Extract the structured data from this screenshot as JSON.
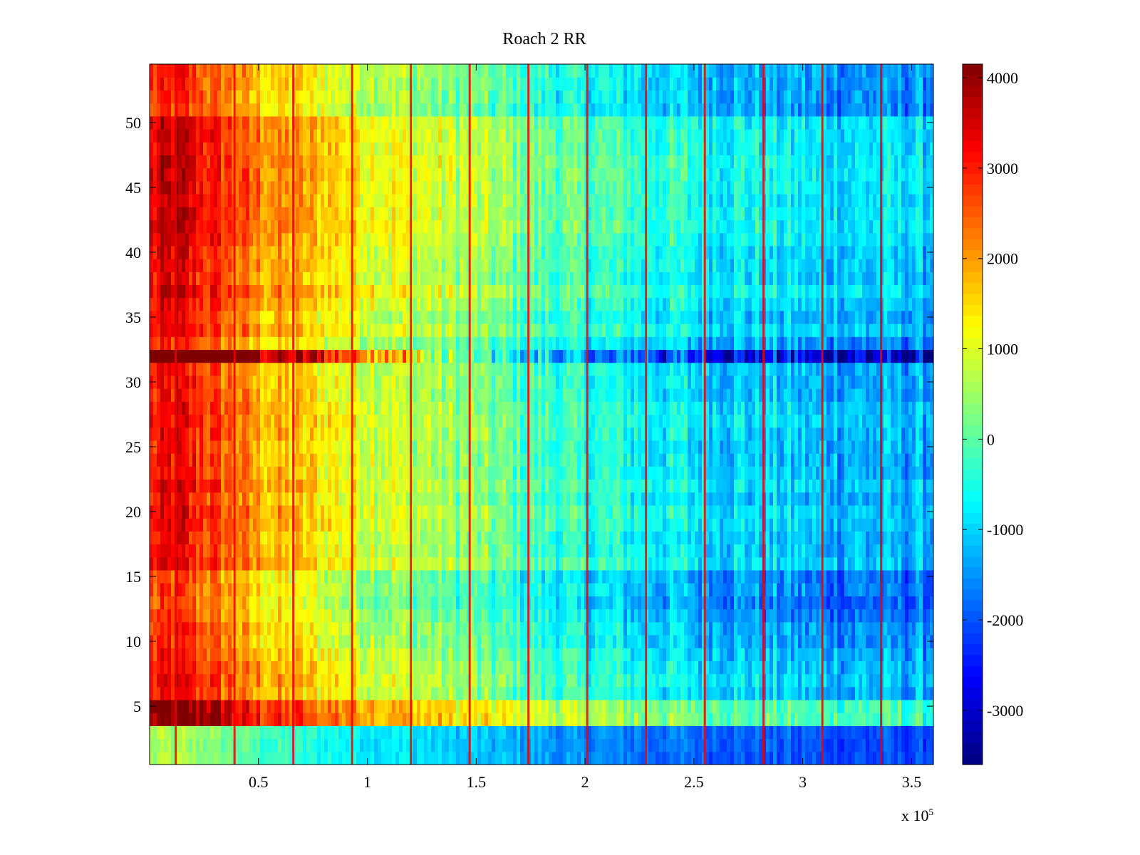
{
  "chart_data": {
    "type": "heatmap",
    "title": "Roach 2 RR",
    "xlabel": "",
    "ylabel": "",
    "x_exponent_label": "x 10",
    "x_exponent_power": "5",
    "xlim": [
      0,
      3.6
    ],
    "ylim": [
      0.5,
      54.5
    ],
    "x_ticks": [
      0.5,
      1,
      1.5,
      2,
      2.5,
      3,
      3.5
    ],
    "x_tick_labels": [
      "0.5",
      "1",
      "1.5",
      "2",
      "2.5",
      "3",
      "3.5"
    ],
    "y_ticks": [
      5,
      10,
      15,
      20,
      25,
      30,
      35,
      40,
      45,
      50
    ],
    "y_tick_labels": [
      "5",
      "10",
      "15",
      "20",
      "25",
      "30",
      "35",
      "40",
      "45",
      "50"
    ],
    "rows": 54,
    "colormap": "jet",
    "colorbar": {
      "clim": [
        -3600,
        4150
      ],
      "ticks": [
        4000,
        3000,
        2000,
        1000,
        0,
        -1000,
        -2000,
        -3000
      ],
      "tick_labels": [
        "4000",
        "3000",
        "2000",
        "1000",
        "0",
        "-1000",
        "-2000",
        "-3000"
      ]
    },
    "column_profile": {
      "x": [
        0.0,
        0.12,
        0.2,
        0.35,
        0.5,
        0.7,
        0.9,
        1.1,
        1.3,
        1.5,
        1.7,
        1.9,
        2.1,
        2.3,
        2.5,
        2.7,
        2.9,
        3.1,
        3.3,
        3.6
      ],
      "mean": [
        2900,
        3300,
        3000,
        2500,
        1900,
        1600,
        1200,
        900,
        600,
        300,
        0,
        -300,
        -450,
        -650,
        -800,
        -950,
        -1050,
        -1200,
        -1250,
        -1300
      ]
    },
    "row_offsets": [
      {
        "rows": [
          1,
          3
        ],
        "offset": -1300,
        "gradient": 0.6
      },
      {
        "rows": [
          4,
          5
        ],
        "offset": 1000
      },
      {
        "rows": [
          10,
          12
        ],
        "offset": -350
      },
      {
        "rows": [
          13,
          15
        ],
        "offset": -500
      },
      {
        "rows": [
          32,
          32
        ],
        "offset": 1100,
        "gradient": 1.9
      },
      {
        "rows": [
          33,
          33
        ],
        "offset": -300
      },
      {
        "rows": [
          36,
          40
        ],
        "offset": 200
      },
      {
        "rows": [
          41,
          50
        ],
        "offset": 400
      },
      {
        "rows": [
          51,
          54
        ],
        "offset": -250
      }
    ],
    "vertical_lines": {
      "x": [
        0.12,
        0.39,
        0.66,
        0.93,
        1.2,
        1.47,
        1.74,
        2.01,
        2.28,
        2.55,
        2.82,
        3.09,
        3.36
      ],
      "value": 3300
    }
  }
}
